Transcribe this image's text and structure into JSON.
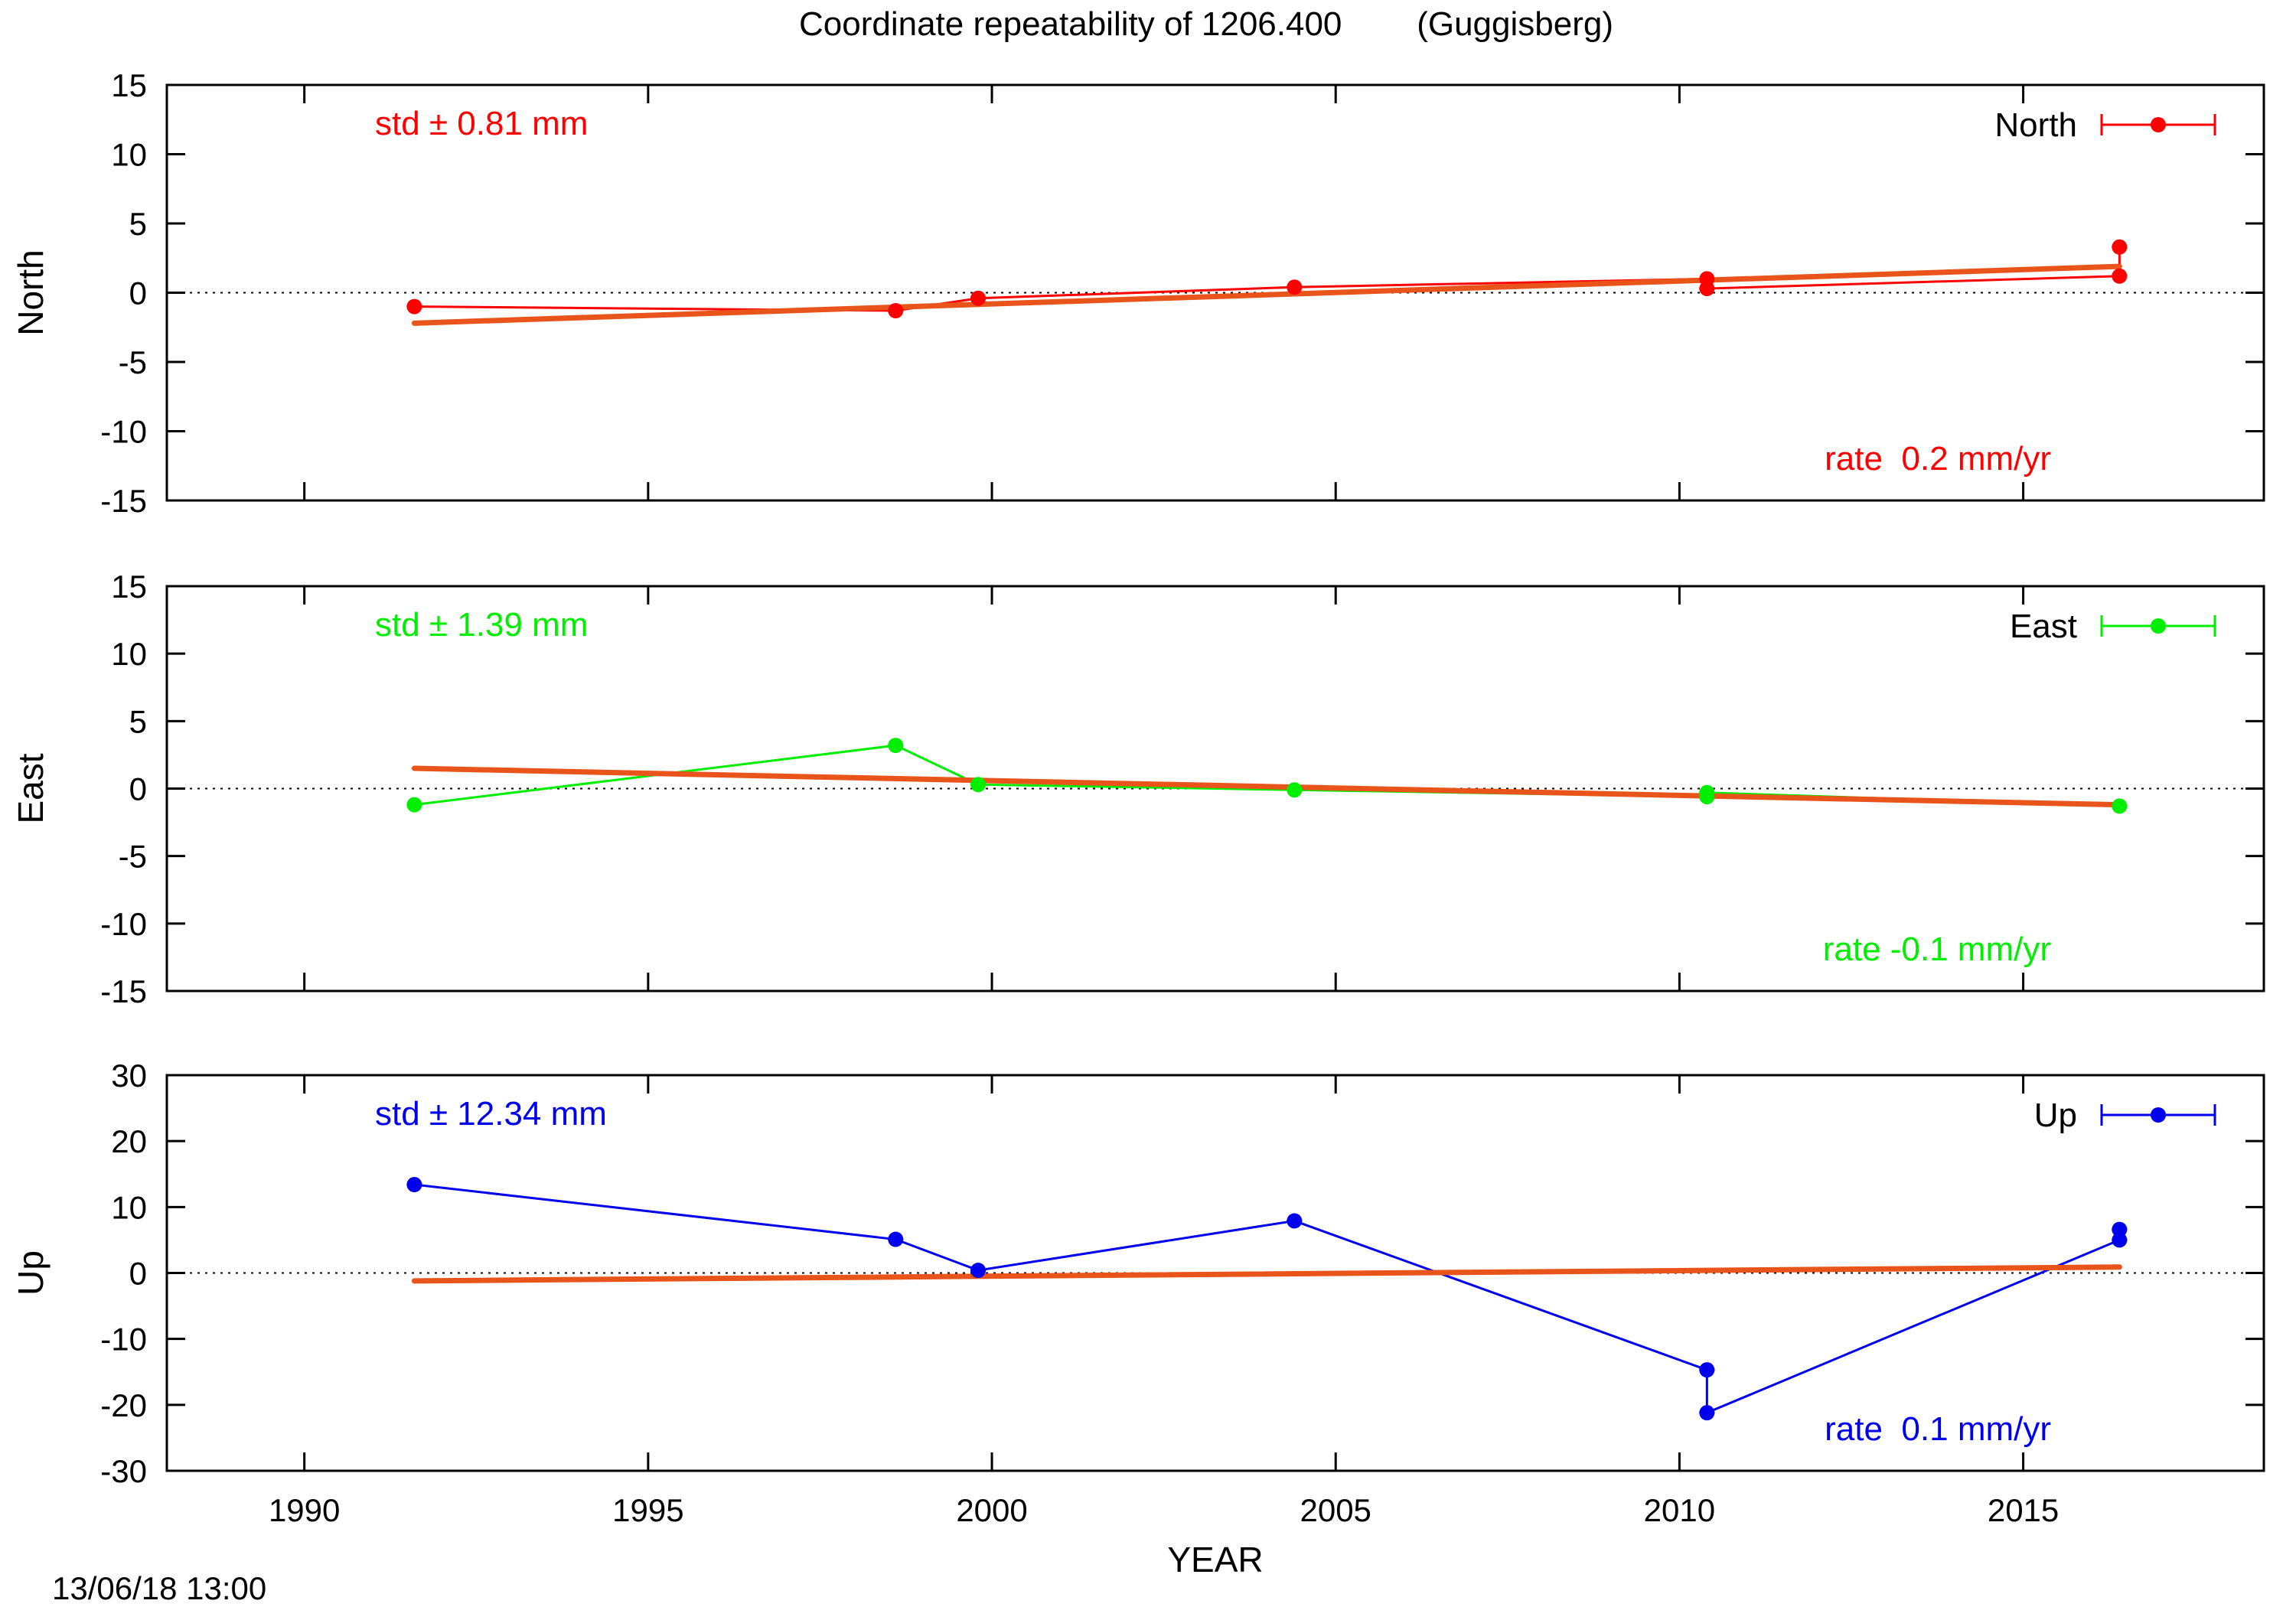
{
  "chart_data": {
    "title": "Coordinate repeatability of 1206.400        (Guggisberg)",
    "xlabel": "YEAR",
    "xlim": [
      1988.0,
      2018.5
    ],
    "xticks": [
      "1990",
      "1995",
      "2000",
      "2005",
      "2010",
      "2015"
    ],
    "timestamp": "13/06/18 13:00",
    "trend_color": "#e8541a",
    "panels": [
      {
        "type": "line",
        "name": "North",
        "ylabel": "North",
        "color": "#ff0000",
        "ylim": [
          -15,
          15
        ],
        "yticks": [
          "-15",
          "-10",
          "-5",
          "0",
          "5",
          "10",
          "15"
        ],
        "legend": "North",
        "std": "std ± 0.81 mm",
        "rate": "rate  0.2 mm/yr",
        "x": [
          1991.6,
          1998.6,
          1999.8,
          2004.4,
          2010.4,
          2010.4,
          2016.4,
          2016.4
        ],
        "y": [
          -1.0,
          -1.3,
          -0.4,
          0.4,
          1.0,
          0.3,
          1.2,
          3.3
        ],
        "trend": {
          "x": [
            1991.6,
            2016.4
          ],
          "y": [
            -2.2,
            1.9
          ]
        }
      },
      {
        "type": "line",
        "name": "East",
        "ylabel": "East",
        "color": "#00ee00",
        "ylim": [
          -15,
          15
        ],
        "yticks": [
          "-15",
          "-10",
          "-5",
          "0",
          "5",
          "10",
          "15"
        ],
        "legend": "East",
        "std": "std ± 1.39 mm",
        "rate": "rate -0.1 mm/yr",
        "x": [
          1991.6,
          1998.6,
          1999.8,
          2004.4,
          2010.4,
          2010.4,
          2016.4
        ],
        "y": [
          -1.2,
          3.2,
          0.3,
          -0.1,
          -0.6,
          -0.3,
          -1.3
        ],
        "trend": {
          "x": [
            1991.6,
            2016.4
          ],
          "y": [
            1.5,
            -1.2
          ]
        }
      },
      {
        "type": "line",
        "name": "Up",
        "ylabel": "Up",
        "color": "#0000ee",
        "ylim": [
          -30,
          30
        ],
        "yticks": [
          "-30",
          "-20",
          "-10",
          "0",
          "10",
          "20",
          "30"
        ],
        "legend": "Up",
        "std": "std ± 12.34 mm",
        "rate": "rate  0.1 mm/yr",
        "x": [
          1991.6,
          1998.6,
          1999.8,
          2004.4,
          2010.4,
          2010.4,
          2016.4,
          2016.4
        ],
        "y": [
          13.4,
          5.1,
          0.4,
          7.9,
          -14.7,
          -21.2,
          5.0,
          6.6
        ],
        "trend": {
          "x": [
            1991.6,
            2016.4
          ],
          "y": [
            -1.2,
            0.9
          ]
        }
      }
    ]
  }
}
